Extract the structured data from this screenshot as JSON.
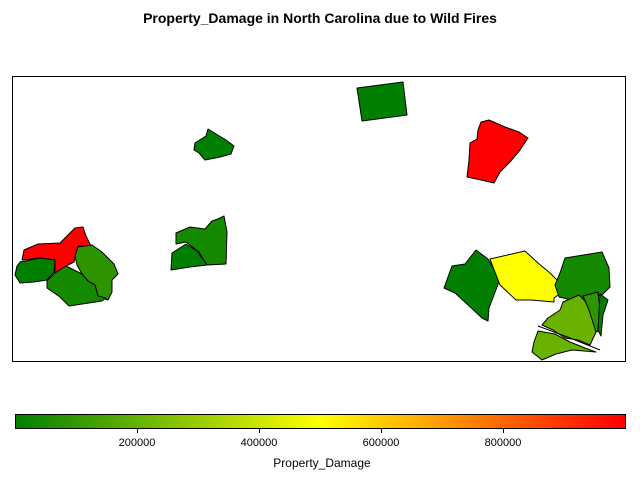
{
  "title": "Property_Damage in North Carolina due to Wild Fires",
  "legend": {
    "title": "Property_Damage",
    "ticks": [
      "200000",
      "400000",
      "600000",
      "800000"
    ],
    "min": 0,
    "max": 1000000,
    "colors": [
      "#008000",
      "#ffff00",
      "#ff0000"
    ]
  },
  "map": {
    "region_colors": {
      "dark_green": "#007f00",
      "green": "#158a00",
      "mid_green": "#2e9400",
      "yellow_green": "#6ab200",
      "yellow": "#ffff00",
      "red": "#ff0000"
    }
  }
}
